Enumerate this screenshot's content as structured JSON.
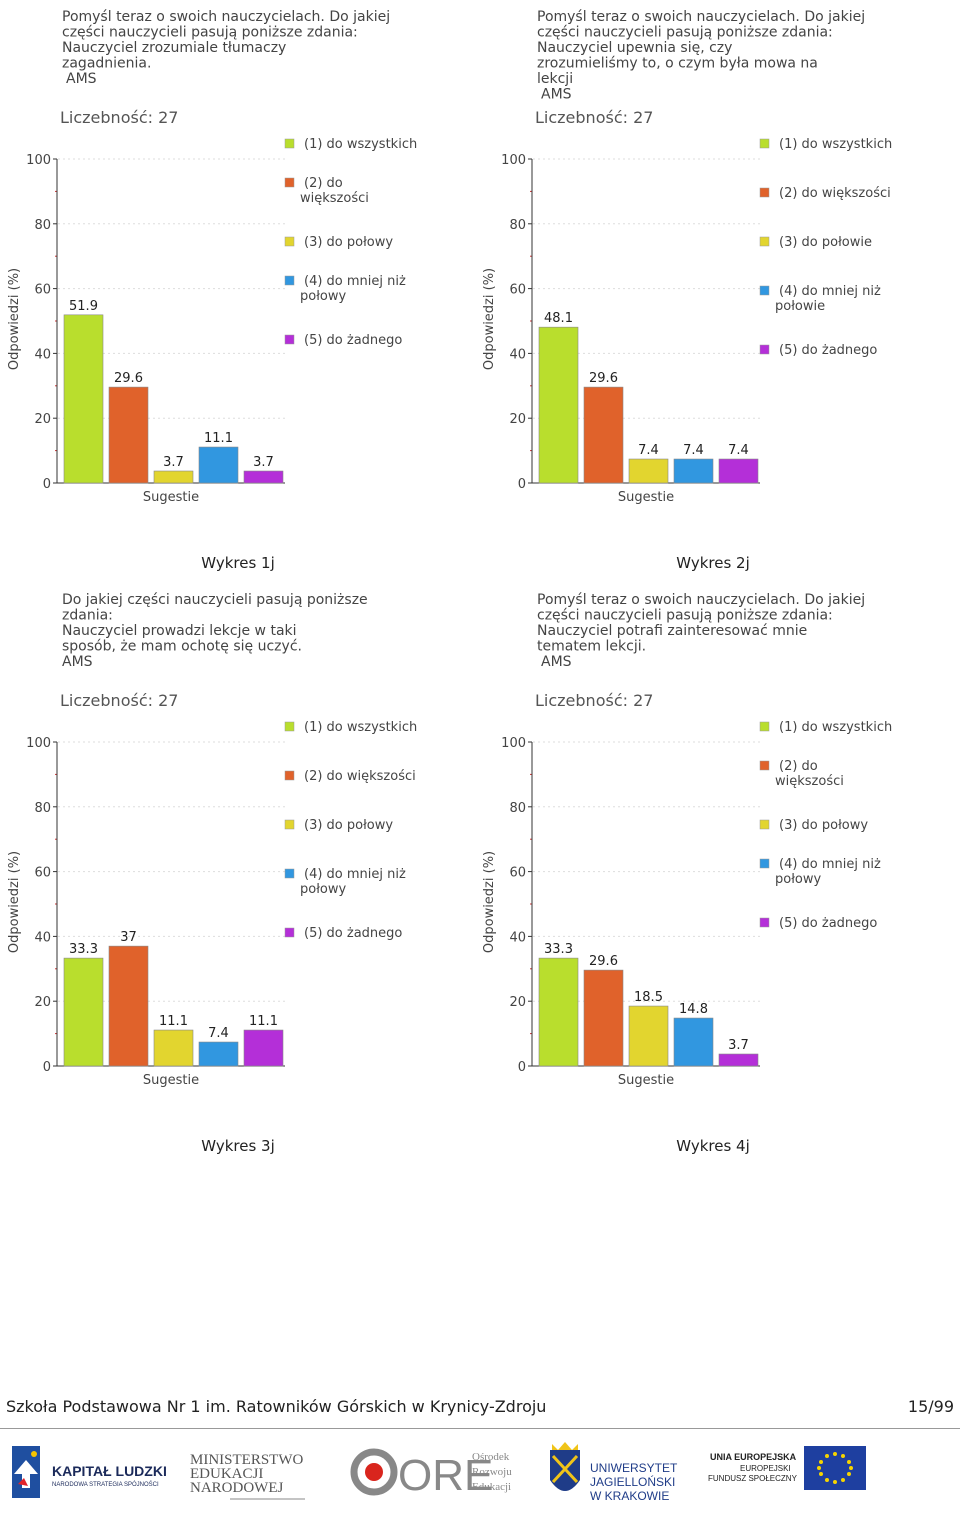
{
  "legend": {
    "items": [
      "(1) do wszystkich",
      "(2) do większości",
      "(3) do połowy",
      "(4) do mniej niż połowie",
      "(5) do żadnego"
    ],
    "colors": [
      "#b9de2d",
      "#e0622b",
      "#e2d52f",
      "#3197e0",
      "#b42fd8"
    ]
  },
  "chart_data": [
    {
      "type": "bar",
      "title_lines": [
        "Pomyśl teraz o swoich nauczycielach. Do jakiej",
        "części nauczycieli pasują poniższe zdania:",
        "Nauczyciel zrozumiale tłumaczy",
        "zagadnienia.",
        " AMS"
      ],
      "count_label": "Liczebność: 27",
      "categories": [
        "(1) do wszystkich",
        "(2) do większości",
        "(3) do połowy",
        "(4) do mniej niż połowy",
        "(5) do żadnego"
      ],
      "legend_lines": [
        [
          "(1) do wszystkich"
        ],
        [
          "(2) do",
          "większości"
        ],
        [
          "(3) do połowy"
        ],
        [
          "(4) do mniej niż",
          "połowy"
        ],
        [
          "(5) do żadnego"
        ]
      ],
      "values": [
        51.9,
        29.6,
        3.7,
        11.1,
        3.7
      ],
      "value_labels": [
        "51.9",
        "29.6",
        "3.7",
        "11.1",
        "3.7"
      ],
      "xlabel": "Sugestie",
      "ylabel": "Odpowiedzi (%)",
      "ylim": [
        0,
        100
      ],
      "yticks": [
        0,
        20,
        40,
        60,
        80,
        100
      ],
      "caption": "Wykres 1j"
    },
    {
      "type": "bar",
      "title_lines": [
        "Pomyśl teraz o swoich nauczycielach. Do jakiej",
        "części nauczycieli pasują poniższe zdania:",
        "Nauczyciel upewnia się, czy",
        "zrozumieliśmy to, o czym była mowa na",
        "lekcji",
        " AMS"
      ],
      "count_label": "Liczebność: 27",
      "categories": [
        "(1) do wszystkich",
        "(2) do większości",
        "(3) do połowie",
        "(4) do mniej niż połowie",
        "(5) do żadnego"
      ],
      "legend_lines": [
        [
          "(1) do wszystkich"
        ],
        [
          "(2) do większości"
        ],
        [
          "(3) do połowie"
        ],
        [
          "(4) do mniej niż",
          "połowie"
        ],
        [
          "(5) do żadnego"
        ]
      ],
      "values": [
        48.1,
        29.6,
        7.4,
        7.4,
        7.4
      ],
      "value_labels": [
        "48.1",
        "29.6",
        "7.4",
        "7.4",
        "7.4"
      ],
      "xlabel": "Sugestie",
      "ylabel": "Odpowiedzi (%)",
      "ylim": [
        0,
        100
      ],
      "yticks": [
        0,
        20,
        40,
        60,
        80,
        100
      ],
      "caption": "Wykres 2j"
    },
    {
      "type": "bar",
      "title_lines": [
        "Do jakiej części nauczycieli pasują poniższe",
        "zdania:",
        "Nauczyciel prowadzi lekcje w taki",
        "sposób, że mam ochotę się uczyć.",
        "AMS"
      ],
      "count_label": "Liczebność: 27",
      "categories": [
        "(1) do wszystkich",
        "(2) do większości",
        "(3) do połowy",
        "(4) do mniej niż połowy",
        "(5) do żadnego"
      ],
      "legend_lines": [
        [
          "(1) do wszystkich"
        ],
        [
          "(2) do większości"
        ],
        [
          "(3) do połowy"
        ],
        [
          "(4) do mniej niż",
          "połowy"
        ],
        [
          "(5) do żadnego"
        ]
      ],
      "values": [
        33.3,
        37,
        11.1,
        7.4,
        11.1
      ],
      "value_labels": [
        "33.3",
        "37",
        "11.1",
        "7.4",
        "11.1"
      ],
      "xlabel": "Sugestie",
      "ylabel": "Odpowiedzi (%)",
      "ylim": [
        0,
        100
      ],
      "yticks": [
        0,
        20,
        40,
        60,
        80,
        100
      ],
      "caption": "Wykres 3j"
    },
    {
      "type": "bar",
      "title_lines": [
        "Pomyśl teraz o swoich nauczycielach. Do jakiej",
        "części nauczycieli pasują poniższe zdania:",
        "Nauczyciel potrafi zainteresować mnie",
        "tematem lekcji.",
        " AMS"
      ],
      "count_label": "Liczebność: 27",
      "categories": [
        "(1) do wszystkich",
        "(2) do większości",
        "(3) do połowy",
        "(4) do mniej niż połowy",
        "(5) do żadnego"
      ],
      "legend_lines": [
        [
          "(1) do wszystkich"
        ],
        [
          "(2) do",
          "większości"
        ],
        [
          "(3) do połowy"
        ],
        [
          "(4) do mniej niż",
          "połowy"
        ],
        [
          "(5) do żadnego"
        ]
      ],
      "values": [
        33.3,
        29.6,
        18.5,
        14.8,
        3.7
      ],
      "value_labels": [
        "33.3",
        "29.6",
        "18.5",
        "14.8",
        "3.7"
      ],
      "xlabel": "Sugestie",
      "ylabel": "Odpowiedzi (%)",
      "ylim": [
        0,
        100
      ],
      "yticks": [
        0,
        20,
        40,
        60,
        80,
        100
      ],
      "caption": "Wykres 4j"
    }
  ],
  "footer": {
    "school": "Szkoła Podstawowa Nr 1 im. Ratowników Górskich w Krynicy-Zdroju",
    "page": "15/99",
    "logos": {
      "kapital_ludzki": [
        "KAPITAŁ LUDZKI",
        "NARODOWA STRATEGIA SPÓJNOŚCI"
      ],
      "ministerstwo": [
        "MINISTERSTWO",
        "EDUKACJI",
        "NARODOWEJ"
      ],
      "ore": [
        "ORE",
        "Ośrodek",
        "Rozwoju",
        "Edukacji"
      ],
      "uj": [
        "UNIWERSYTET",
        "JAGIELLOŃSKI",
        "W KRAKOWIE"
      ],
      "ue": [
        "UNIA EUROPEJSKA",
        "EUROPEJSKI",
        "FUNDUSZ SPOŁECZNY"
      ]
    }
  }
}
